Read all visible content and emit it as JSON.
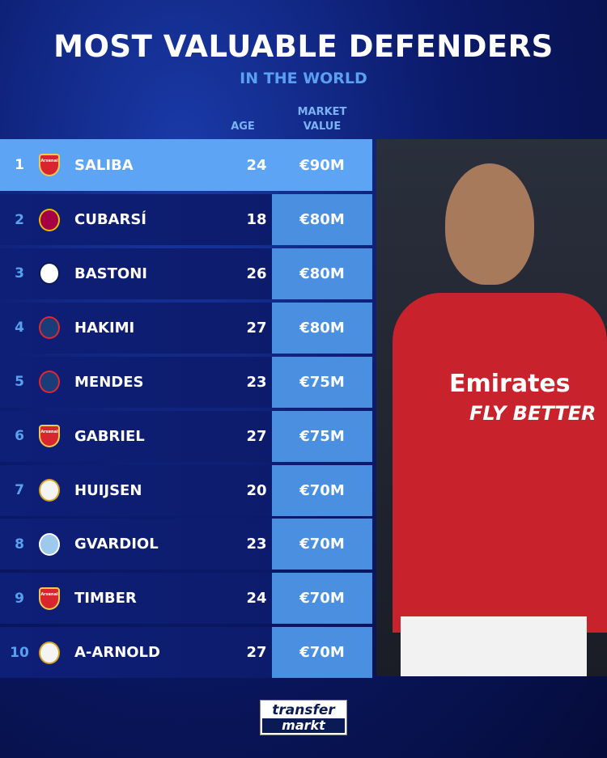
{
  "title": "MOST VALUABLE DEFENDERS",
  "subtitle": "IN THE WORLD",
  "headers": {
    "age": "AGE",
    "value_line1": "MARKET",
    "value_line2": "VALUE"
  },
  "rows": [
    {
      "rank": "1",
      "club": "Arsenal",
      "name": "SALIBA",
      "age": "24",
      "value": "€90M"
    },
    {
      "rank": "2",
      "club": "Barcelona",
      "name": "CUBARSÍ",
      "age": "18",
      "value": "€80M"
    },
    {
      "rank": "3",
      "club": "Inter",
      "name": "BASTONI",
      "age": "26",
      "value": "€80M"
    },
    {
      "rank": "4",
      "club": "PSG",
      "name": "HAKIMI",
      "age": "27",
      "value": "€80M"
    },
    {
      "rank": "5",
      "club": "PSG",
      "name": "MENDES",
      "age": "23",
      "value": "€75M"
    },
    {
      "rank": "6",
      "club": "Arsenal",
      "name": "GABRIEL",
      "age": "27",
      "value": "€75M"
    },
    {
      "rank": "7",
      "club": "Real Madrid",
      "name": "HUIJSEN",
      "age": "20",
      "value": "€70M"
    },
    {
      "rank": "8",
      "club": "Manchester City",
      "name": "GVARDIOL",
      "age": "23",
      "value": "€70M"
    },
    {
      "rank": "9",
      "club": "Arsenal",
      "name": "TIMBER",
      "age": "24",
      "value": "€70M"
    },
    {
      "rank": "10",
      "club": "Real Madrid",
      "name": "A-ARNOLD",
      "age": "27",
      "value": "€70M"
    }
  ],
  "photo": {
    "sponsor": "Emirates",
    "sponsor_tagline": "FLY BETTER"
  },
  "logo": {
    "line1": "transfer",
    "line2": "markt"
  },
  "colors": {
    "background": "#07114a",
    "highlight_row": "#5ea4f5",
    "value_cell": "#4a8fe0",
    "accent_text": "#5aa0f0"
  }
}
